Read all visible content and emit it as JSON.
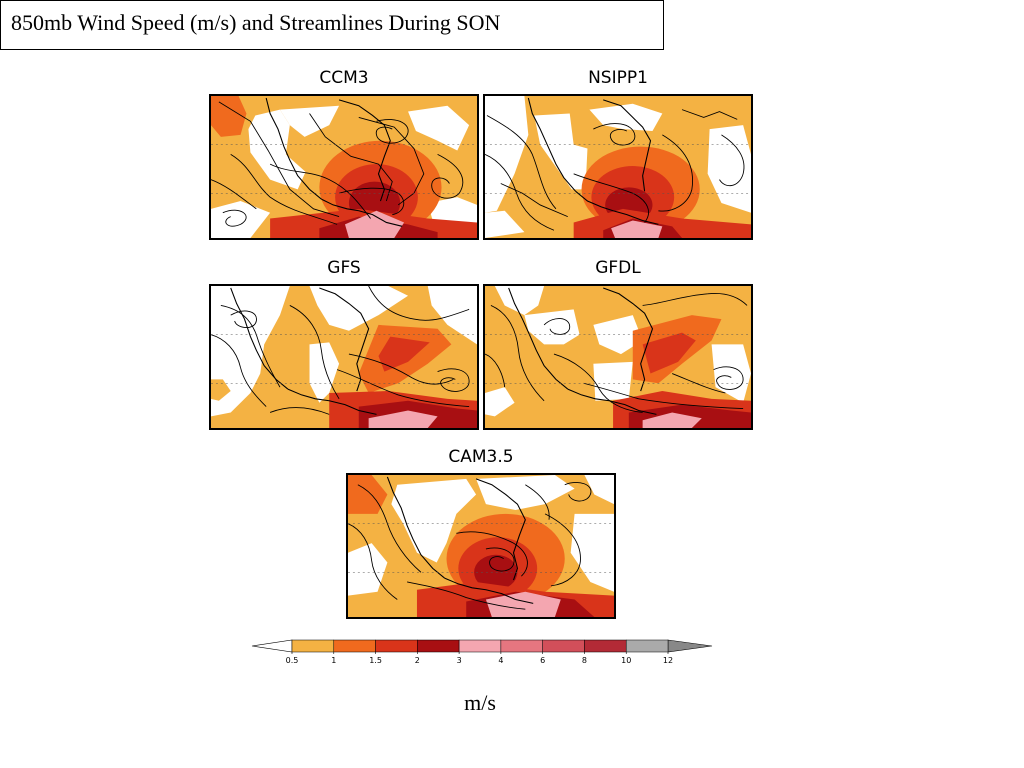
{
  "title": "850mb Wind Speed (m/s) and Streamlines During SON",
  "panels": [
    {
      "label": "CCM3"
    },
    {
      "label": "NSIPP1"
    },
    {
      "label": "GFS"
    },
    {
      "label": "GFDL"
    },
    {
      "label": "CAM3.5"
    }
  ],
  "colorbar": {
    "ticks": [
      "0.5",
      "1",
      "1.5",
      "2",
      "3",
      "4",
      "6",
      "8",
      "10",
      "12"
    ],
    "colors": [
      "#f4b243",
      "#f06a1e",
      "#d9341a",
      "#a80f12",
      "#f4a6b0",
      "#e67680",
      "#d24f5a",
      "#b32a36",
      "#aaaaaa"
    ],
    "under_color": "#ffffff",
    "over_color": "#888888"
  },
  "units": "m/s"
}
